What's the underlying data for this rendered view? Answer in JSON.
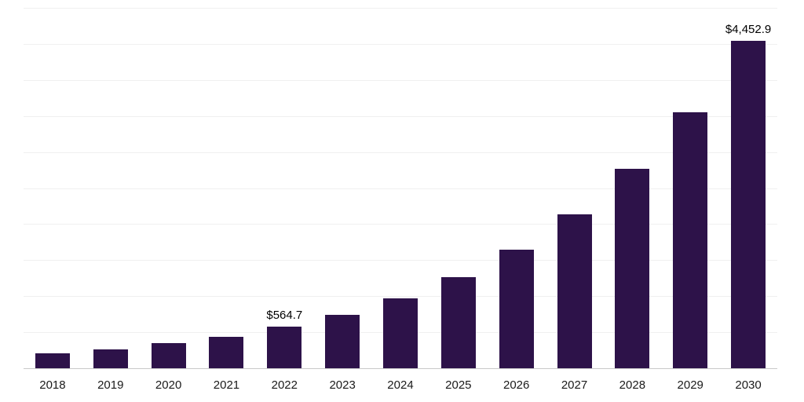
{
  "chart_data": {
    "type": "bar",
    "title": "",
    "xlabel": "",
    "ylabel": "",
    "categories": [
      "2018",
      "2019",
      "2020",
      "2021",
      "2022",
      "2023",
      "2024",
      "2025",
      "2026",
      "2027",
      "2028",
      "2029",
      "2030"
    ],
    "values": [
      201.2,
      260.3,
      338.6,
      431.0,
      564.7,
      728.9,
      952.1,
      1240.5,
      1610.2,
      2090.9,
      2713.6,
      3480.0,
      4452.9
    ],
    "value_labels": [
      "",
      "",
      "",
      "",
      "$564.7",
      "",
      "",
      "",
      "",
      "",
      "",
      "",
      "$4,452.9"
    ],
    "ylim": [
      0,
      4900
    ],
    "grid": "horizontal",
    "gridline_count": 10,
    "legend": "none",
    "bar_color": "#2d1249",
    "gridline_color": "#f0f0f0",
    "axis_line_color": "#c9c9c9",
    "tick_label_color": "#1a1a1a",
    "value_label_color": "#000000"
  }
}
